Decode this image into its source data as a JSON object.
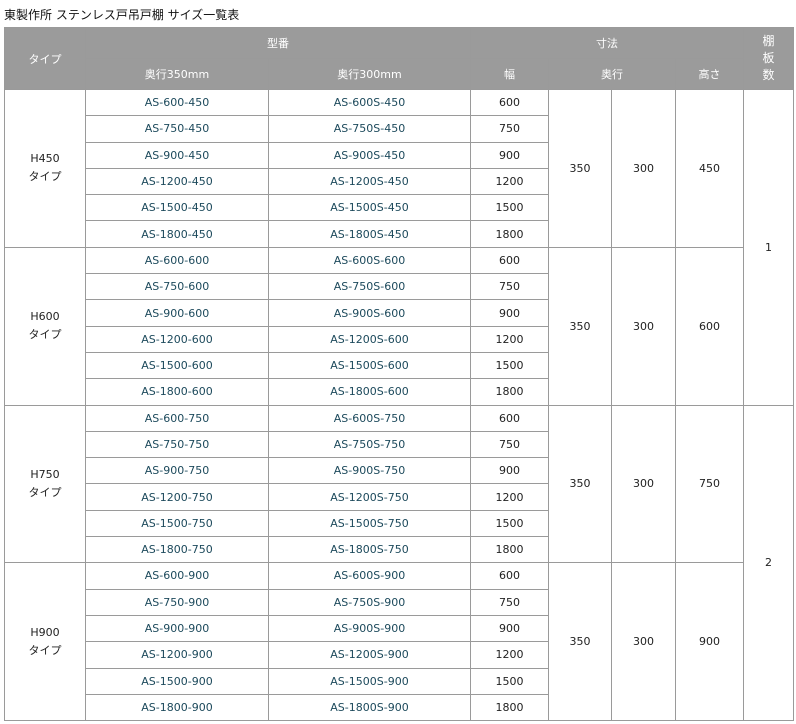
{
  "title": "東製作所 ステンレス戸吊戸棚 サイズ一覧表",
  "header": {
    "type": "タイプ",
    "model": "型番",
    "depth350": "奥行350mm",
    "depth300": "奥行300mm",
    "dims": "寸法",
    "width": "幅",
    "depth": "奥行",
    "height": "高さ",
    "shelves": "棚板数"
  },
  "groups": [
    {
      "type": "H450\nタイプ",
      "d1": "350",
      "d2": "300",
      "h": "450",
      "rows": [
        [
          "AS-600-450",
          "AS-600S-450",
          "600"
        ],
        [
          "AS-750-450",
          "AS-750S-450",
          "750"
        ],
        [
          "AS-900-450",
          "AS-900S-450",
          "900"
        ],
        [
          "AS-1200-450",
          "AS-1200S-450",
          "1200"
        ],
        [
          "AS-1500-450",
          "AS-1500S-450",
          "1500"
        ],
        [
          "AS-1800-450",
          "AS-1800S-450",
          "1800"
        ]
      ]
    },
    {
      "type": "H600\nタイプ",
      "d1": "350",
      "d2": "300",
      "h": "600",
      "rows": [
        [
          "AS-600-600",
          "AS-600S-600",
          "600"
        ],
        [
          "AS-750-600",
          "AS-750S-600",
          "750"
        ],
        [
          "AS-900-600",
          "AS-900S-600",
          "900"
        ],
        [
          "AS-1200-600",
          "AS-1200S-600",
          "1200"
        ],
        [
          "AS-1500-600",
          "AS-1500S-600",
          "1500"
        ],
        [
          "AS-1800-600",
          "AS-1800S-600",
          "1800"
        ]
      ]
    },
    {
      "type": "H750\nタイプ",
      "d1": "350",
      "d2": "300",
      "h": "750",
      "rows": [
        [
          "AS-600-750",
          "AS-600S-750",
          "600"
        ],
        [
          "AS-750-750",
          "AS-750S-750",
          "750"
        ],
        [
          "AS-900-750",
          "AS-900S-750",
          "900"
        ],
        [
          "AS-1200-750",
          "AS-1200S-750",
          "1200"
        ],
        [
          "AS-1500-750",
          "AS-1500S-750",
          "1500"
        ],
        [
          "AS-1800-750",
          "AS-1800S-750",
          "1800"
        ]
      ]
    },
    {
      "type": "H900\nタイプ",
      "d1": "350",
      "d2": "300",
      "h": "900",
      "rows": [
        [
          "AS-600-900",
          "AS-600S-900",
          "600"
        ],
        [
          "AS-750-900",
          "AS-750S-900",
          "750"
        ],
        [
          "AS-900-900",
          "AS-900S-900",
          "900"
        ],
        [
          "AS-1200-900",
          "AS-1200S-900",
          "1200"
        ],
        [
          "AS-1500-900",
          "AS-1500S-900",
          "1500"
        ],
        [
          "AS-1800-900",
          "AS-1800S-900",
          "1800"
        ]
      ]
    }
  ],
  "shelves": [
    "1",
    "2"
  ]
}
